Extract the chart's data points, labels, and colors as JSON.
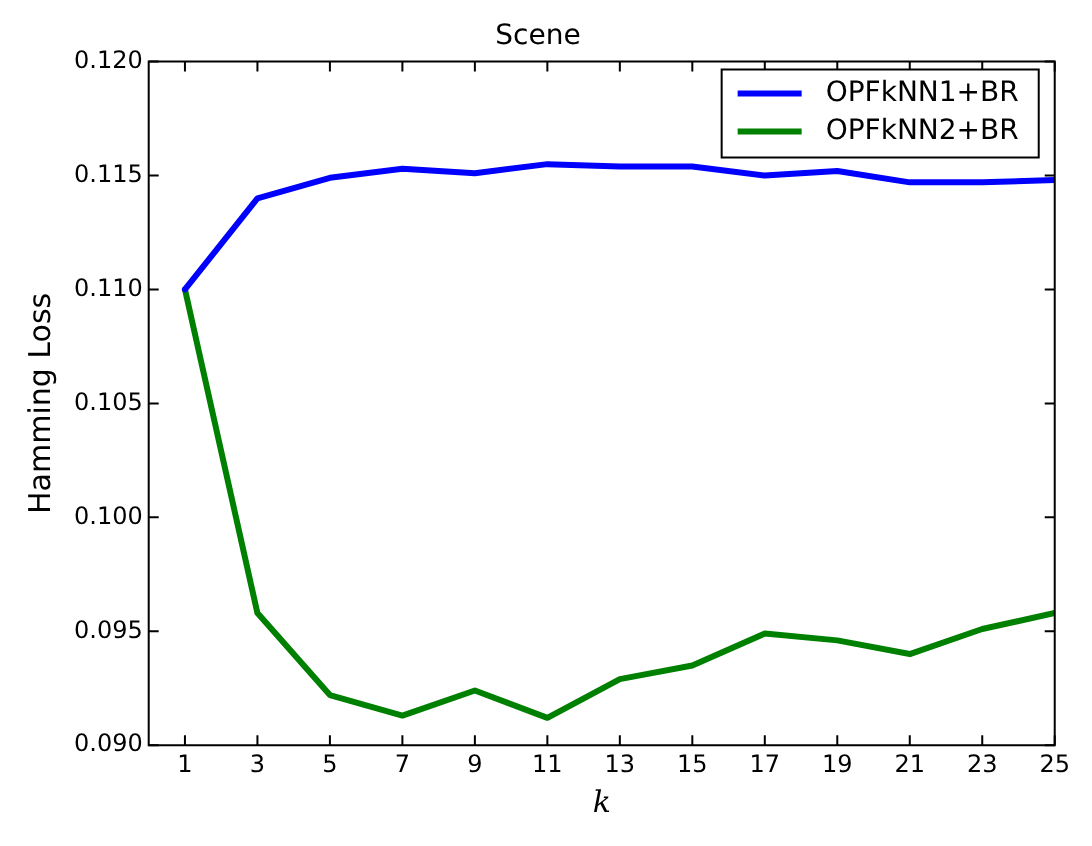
{
  "chart_data": {
    "type": "line",
    "title": "Scene",
    "xlabel": "k",
    "ylabel": "Hamming Loss",
    "x": [
      1,
      3,
      5,
      7,
      9,
      11,
      13,
      15,
      17,
      19,
      21,
      23,
      25
    ],
    "series": [
      {
        "name": "OPFkNN1+BR",
        "color": "#0000ff",
        "values": [
          0.11,
          0.114,
          0.1149,
          0.1153,
          0.1151,
          0.1155,
          0.1154,
          0.1154,
          0.115,
          0.1152,
          0.1147,
          0.1147,
          0.1148
        ]
      },
      {
        "name": "OPFkNN2+BR",
        "color": "#008000",
        "values": [
          0.11,
          0.0958,
          0.0922,
          0.0913,
          0.0924,
          0.0912,
          0.0929,
          0.0935,
          0.0949,
          0.0946,
          0.094,
          0.0951,
          0.0958
        ]
      }
    ],
    "xlim": [
      0,
      25
    ],
    "xticks": [
      1,
      3,
      5,
      7,
      9,
      11,
      13,
      15,
      17,
      19,
      21,
      23,
      25
    ],
    "ylim": [
      0.09,
      0.12
    ],
    "yticks": [
      {
        "value": 0.09,
        "label": "0.090"
      },
      {
        "value": 0.095,
        "label": "0.095"
      },
      {
        "value": 0.1,
        "label": "0.100"
      },
      {
        "value": 0.105,
        "label": "0.105"
      },
      {
        "value": 0.11,
        "label": "0.110"
      },
      {
        "value": 0.115,
        "label": "0.115"
      },
      {
        "value": 0.12,
        "label": "0.120"
      }
    ],
    "grid": false,
    "legend": "top right",
    "marker": "none",
    "line_style": "solid"
  }
}
